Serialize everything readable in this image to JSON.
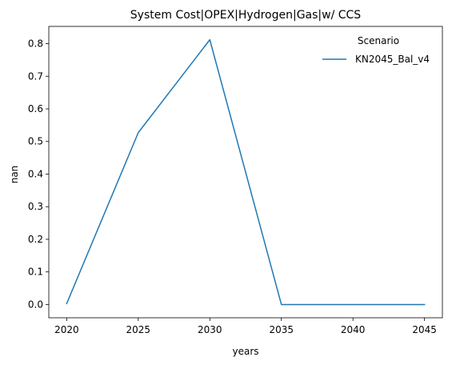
{
  "chart_data": {
    "type": "line",
    "title": "System Cost|OPEX|Hydrogen|Gas|w/ CCS",
    "xlabel": "years",
    "ylabel": "nan",
    "x": [
      2020,
      2025,
      2030,
      2035,
      2040,
      2045
    ],
    "series": [
      {
        "name": "KN2045_Bal_v4",
        "values": [
          0.003,
          0.527,
          0.812,
          0.0,
          0.0,
          0.0
        ],
        "color": "#1f77b4"
      }
    ],
    "xticks": [
      "2020",
      "2025",
      "2030",
      "2035",
      "2040",
      "2045"
    ],
    "yticks": [
      "0.0",
      "0.1",
      "0.2",
      "0.3",
      "0.4",
      "0.5",
      "0.6",
      "0.7",
      "0.8"
    ],
    "xlim": [
      2018.75,
      2046.25
    ],
    "ylim": [
      -0.0406,
      0.8528
    ],
    "legend": {
      "title": "Scenario",
      "placement": "top-right"
    },
    "grid": false
  }
}
